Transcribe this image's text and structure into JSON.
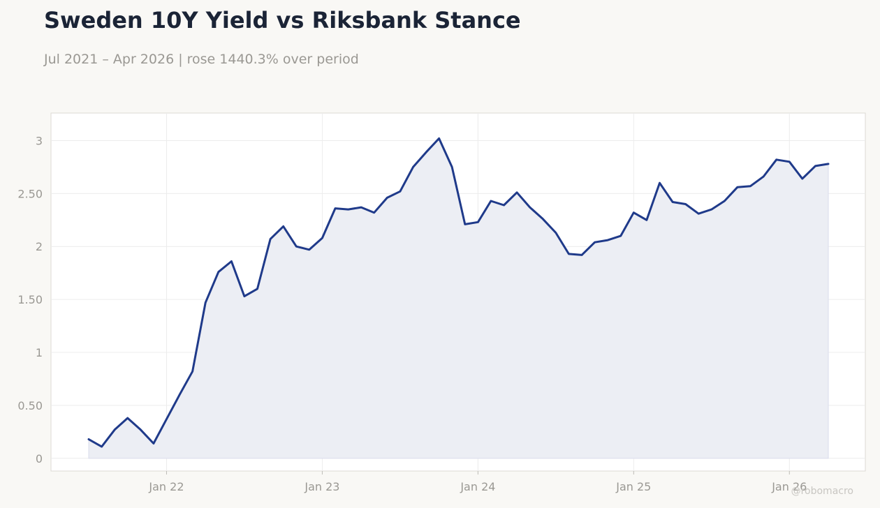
{
  "header": {
    "title": "Sweden 10Y Yield vs Riksbank Stance",
    "subtitle": "Jul 2021 – Apr 2026 | rose 1440.3% over period"
  },
  "watermark": "@robomacro",
  "colors": {
    "background": "#f9f8f5",
    "plot_background": "#ffffff",
    "line": "#1f3a8a",
    "area_fill": "#eceef4",
    "grid": "#ececec",
    "tick_text": "#9a9893"
  },
  "chart_data": {
    "type": "area",
    "title": "Sweden 10Y Yield vs Riksbank Stance",
    "subtitle": "Jul 2021 – Apr 2026 | rose 1440.3% over period",
    "xlabel": "",
    "ylabel": "",
    "x_start": "2021-07",
    "x_end": "2026-04",
    "x_ticks": [
      "Jan 22",
      "Jan 23",
      "Jan 24",
      "Jan 25",
      "Jan 26"
    ],
    "y_ticks": [
      "0",
      "0.50",
      "1",
      "1.50",
      "2",
      "2.50",
      "3"
    ],
    "ylim": [
      -0.12,
      3.26
    ],
    "grid": true,
    "legend": "none",
    "series": [
      {
        "values": [
          0.18,
          0.11,
          0.27,
          0.38,
          0.27,
          0.14,
          0.37,
          0.6,
          0.82,
          1.47,
          1.76,
          1.86,
          1.53,
          1.6,
          2.07,
          2.19,
          2.0,
          1.97,
          2.08,
          2.36,
          2.35,
          2.37,
          2.32,
          2.46,
          2.52,
          2.75,
          2.89,
          3.02,
          2.75,
          2.21,
          2.23,
          2.43,
          2.39,
          2.51,
          2.37,
          2.26,
          2.13,
          1.93,
          1.92,
          2.04,
          2.06,
          2.1,
          2.32,
          2.25,
          2.6,
          2.42,
          2.4,
          2.31,
          2.35,
          2.43,
          2.56,
          2.57,
          2.66,
          2.82,
          2.8,
          2.64,
          2.76,
          2.78
        ]
      }
    ]
  }
}
